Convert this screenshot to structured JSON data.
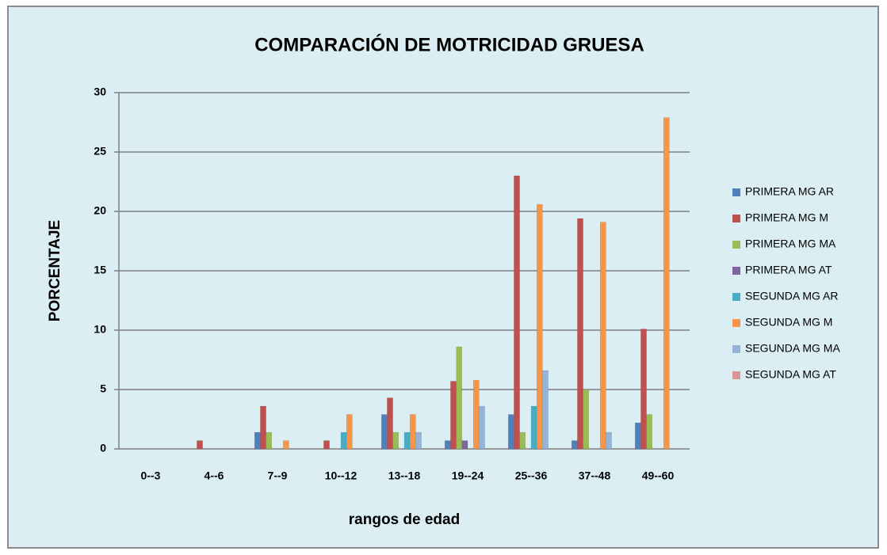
{
  "chart_data": {
    "type": "bar",
    "title": "COMPARACIÓN DE MOTRICIDAD  GRUESA",
    "x_label": "rangos de edad",
    "y_label": "PORCENTAJE",
    "categories": [
      "0--3",
      "4--6",
      "7--9",
      "10--12",
      "13--18",
      "19--24",
      "25--36",
      "37--48",
      "49--60"
    ],
    "series": [
      {
        "name": "PRIMERA MG AR",
        "color": "#4f81bd",
        "values": [
          0,
          0,
          1.4,
          0,
          2.9,
          0.7,
          2.9,
          0.7,
          2.2
        ]
      },
      {
        "name": "PRIMERA MG M",
        "color": "#c0504d",
        "values": [
          0,
          0.7,
          3.6,
          0.7,
          4.3,
          5.7,
          23,
          19.4,
          10.1
        ]
      },
      {
        "name": "PRIMERA MG MA",
        "color": "#9bbb59",
        "values": [
          0,
          0,
          1.4,
          0,
          1.4,
          8.6,
          1.4,
          5,
          2.9
        ]
      },
      {
        "name": "PRIMERA MG AT",
        "color": "#8064a2",
        "values": [
          0,
          0,
          0,
          0,
          0,
          0.7,
          0,
          0,
          0
        ]
      },
      {
        "name": "SEGUNDA MG AR",
        "color": "#4bacc6",
        "values": [
          0,
          0,
          0,
          1.4,
          1.4,
          0,
          3.6,
          0,
          0
        ]
      },
      {
        "name": "SEGUNDA MG M",
        "color": "#f79646",
        "values": [
          0,
          0,
          0.7,
          2.9,
          2.9,
          5.8,
          20.6,
          19.1,
          27.9
        ]
      },
      {
        "name": "SEGUNDA MG MA",
        "color": "#95b3d7",
        "values": [
          0,
          0,
          0,
          0,
          1.4,
          3.6,
          6.6,
          1.4,
          0
        ]
      },
      {
        "name": "SEGUNDA MG AT",
        "color": "#d99694",
        "values": [
          0,
          0,
          0,
          0,
          0,
          0,
          0,
          0,
          0
        ]
      }
    ],
    "ylim": [
      0,
      30
    ],
    "yticks": [
      0,
      5,
      10,
      15,
      20,
      25,
      30
    ],
    "grid": true,
    "legend": "right"
  }
}
